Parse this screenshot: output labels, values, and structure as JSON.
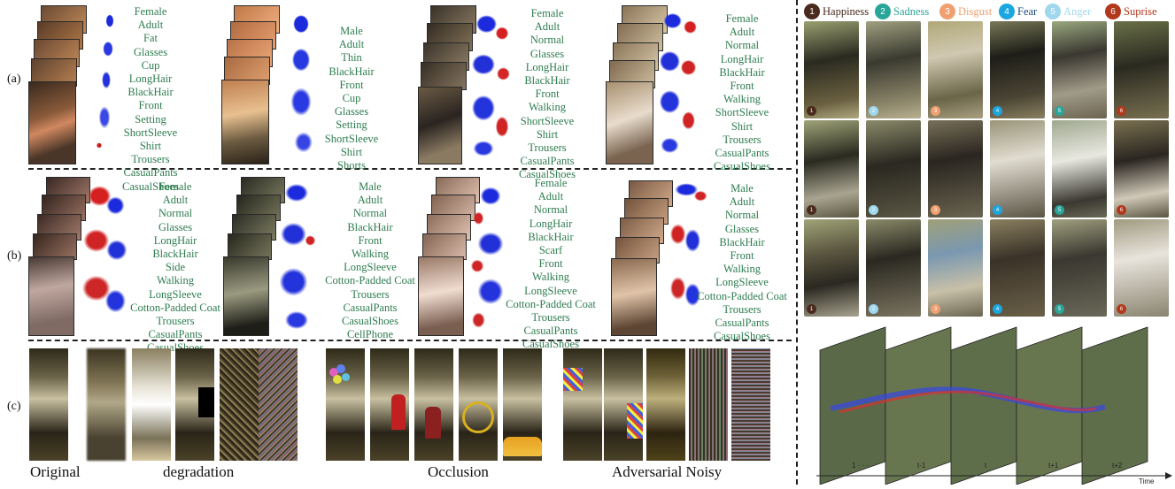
{
  "row_labels": [
    "(a)",
    "(b)",
    "(c)"
  ],
  "row_a": [
    [
      "Female",
      "Adult",
      "Fat",
      "Glasses",
      "Cup",
      "LongHair",
      "BlackHair",
      "Front",
      "Setting",
      "ShortSleeve",
      "Shirt",
      "Trousers",
      "CasualPants",
      "CasualShoes"
    ],
    [
      "Male",
      "Adult",
      "Thin",
      "BlackHair",
      "Front",
      "Cup",
      "Glasses",
      "Setting",
      "ShortSleeve",
      "Shirt",
      "Shorts"
    ],
    [
      "Female",
      "Adult",
      "Normal",
      "Glasses",
      "LongHair",
      "BlackHair",
      "Front",
      "Walking",
      "ShortSleeve",
      "Shirt",
      "Trousers",
      "CasualPants",
      "CasualShoes"
    ],
    [
      "Female",
      "Adult",
      "Normal",
      "LongHair",
      "BlackHair",
      "Front",
      "Walking",
      "ShortSleeve",
      "Shirt",
      "Trousers",
      "CasualPants",
      "CasualShoes"
    ]
  ],
  "row_b": [
    [
      "Female",
      "Adult",
      "Normal",
      "Glasses",
      "LongHair",
      "BlackHair",
      "Side",
      "Walking",
      "LongSleeve",
      "Cotton-Padded Coat",
      "Trousers",
      "CasualPants",
      "CasualShoes"
    ],
    [
      "Male",
      "Adult",
      "Normal",
      "BlackHair",
      "Front",
      "Walking",
      "LongSleeve",
      "Cotton-Padded Coat",
      "Trousers",
      "CasualPants",
      "CasualShoes",
      "CellPhone"
    ],
    [
      "Female",
      "Adult",
      "Normal",
      "LongHair",
      "BlackHair",
      "Scarf",
      "Front",
      "Walking",
      "LongSleeve",
      "Cotton-Padded Coat",
      "Trousers",
      "CasualPants",
      "CasualShoes"
    ],
    [
      "Male",
      "Adult",
      "Normal",
      "Glasses",
      "BlackHair",
      "Front",
      "Walking",
      "LongSleeve",
      "Cotton-Padded Coat",
      "Trousers",
      "CasualPants",
      "CasualShoes"
    ]
  ],
  "captions": {
    "original": "Original",
    "degradation": "degradation",
    "occlusion": "Occlusion",
    "adversarial": "Adversarial Noisy"
  },
  "emotions": [
    {
      "num": "1",
      "label": "Happiness",
      "color": "#4a2a1e",
      "text_color": "#4a2a1e"
    },
    {
      "num": "2",
      "label": "Sadness",
      "color": "#2aa59a",
      "text_color": "#2aa59a"
    },
    {
      "num": "3",
      "label": "Disgust",
      "color": "#f0a070",
      "text_color": "#f0a070"
    },
    {
      "num": "4",
      "label": "Fear",
      "color": "#1aa6e0",
      "text_color": "#1a4a7a"
    },
    {
      "num": "5",
      "label": "Anger",
      "color": "#9fd8ee",
      "text_color": "#9fd8ee"
    },
    {
      "num": "6",
      "label": "Suprise",
      "color": "#b2381c",
      "text_color": "#b2381c"
    }
  ],
  "emotion_grid_badges": [
    [
      "1",
      "2",
      "3",
      "4",
      "5",
      "6"
    ],
    [
      "1",
      "2",
      "3",
      "4",
      "5",
      "6"
    ],
    [
      "1",
      "2",
      "3",
      "4",
      "5",
      "6"
    ]
  ],
  "timeline": {
    "ticks": [
      "1  · · ·",
      "t-1",
      "t",
      "t+1",
      "t+2"
    ],
    "axis_label": "Time"
  }
}
